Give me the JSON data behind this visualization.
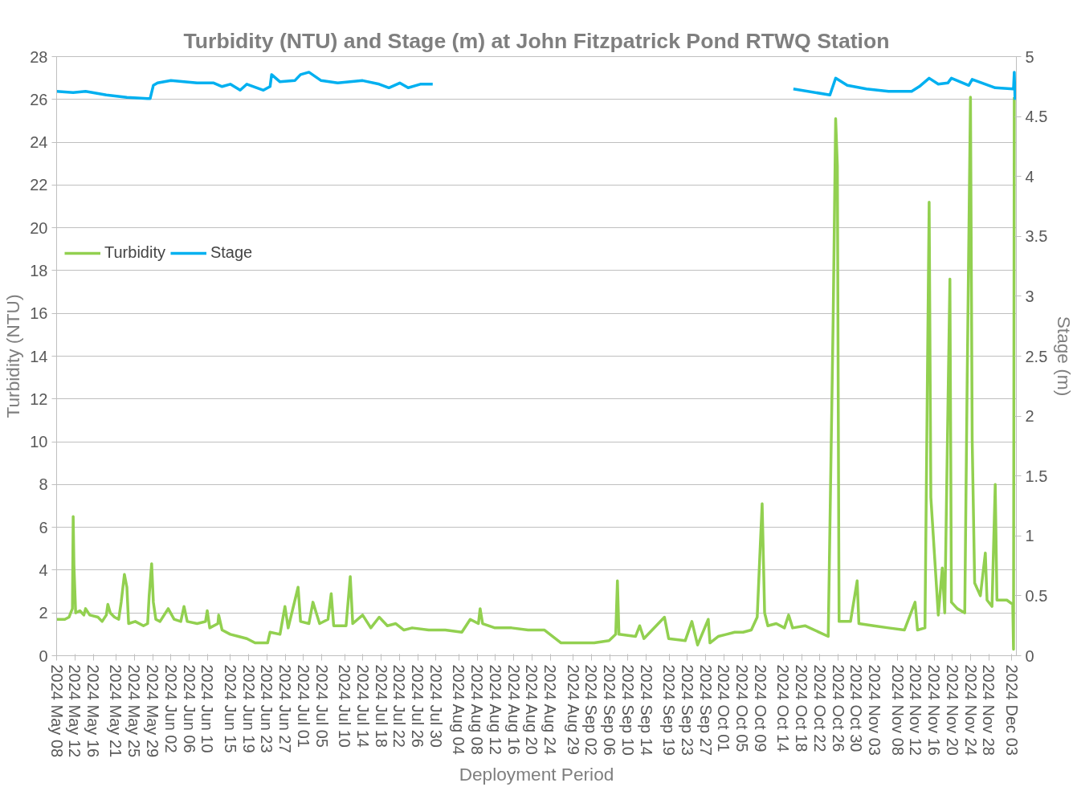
{
  "chart_data": {
    "type": "line",
    "title": "Turbidity (NTU) and Stage (m) at John Fitzpatrick Pond RTWQ Station",
    "xlabel": "Deployment Period",
    "ylabel": "Turbidity (NTU)",
    "y2label": "Stage (m)",
    "xlim": [
      "2024-05-08",
      "2024-12-04"
    ],
    "xticks": [
      {
        "value": "2024-05-08",
        "label": "2024 May 08"
      },
      {
        "value": "2024-05-12",
        "label": "2024 May 12"
      },
      {
        "value": "2024-05-16",
        "label": "2024 May 16"
      },
      {
        "value": "2024-05-21",
        "label": "2024 May 21"
      },
      {
        "value": "2024-05-25",
        "label": "2024 May 25"
      },
      {
        "value": "2024-05-29",
        "label": "2024 May 29"
      },
      {
        "value": "2024-06-02",
        "label": "2024 Jun 02"
      },
      {
        "value": "2024-06-06",
        "label": "2024 Jun 06"
      },
      {
        "value": "2024-06-10",
        "label": "2024 Jun 10"
      },
      {
        "value": "2024-06-15",
        "label": "2024 Jun 15"
      },
      {
        "value": "2024-06-19",
        "label": "2024 Jun 19"
      },
      {
        "value": "2024-06-23",
        "label": "2024 Jun 23"
      },
      {
        "value": "2024-06-27",
        "label": "2024 Jun 27"
      },
      {
        "value": "2024-07-01",
        "label": "2024 Jul 01"
      },
      {
        "value": "2024-07-05",
        "label": "2024 Jul 05"
      },
      {
        "value": "2024-07-10",
        "label": "2024 Jul 10"
      },
      {
        "value": "2024-07-14",
        "label": "2024 Jul 14"
      },
      {
        "value": "2024-07-18",
        "label": "2024 Jul 18"
      },
      {
        "value": "2024-07-22",
        "label": "2024 Jul 22"
      },
      {
        "value": "2024-07-26",
        "label": "2024 Jul 26"
      },
      {
        "value": "2024-07-30",
        "label": "2024 Jul 30"
      },
      {
        "value": "2024-08-04",
        "label": "2024 Aug 04"
      },
      {
        "value": "2024-08-08",
        "label": "2024 Aug 08"
      },
      {
        "value": "2024-08-12",
        "label": "2024 Aug 12"
      },
      {
        "value": "2024-08-16",
        "label": "2024 Aug 16"
      },
      {
        "value": "2024-08-20",
        "label": "2024 Aug 20"
      },
      {
        "value": "2024-08-24",
        "label": "2024 Aug 24"
      },
      {
        "value": "2024-08-29",
        "label": "2024 Aug 29"
      },
      {
        "value": "2024-09-02",
        "label": "2024 Sep 02"
      },
      {
        "value": "2024-09-06",
        "label": "2024 Sep 06"
      },
      {
        "value": "2024-09-10",
        "label": "2024 Sep 10"
      },
      {
        "value": "2024-09-14",
        "label": "2024 Sep 14"
      },
      {
        "value": "2024-09-19",
        "label": "2024 Sep 19"
      },
      {
        "value": "2024-09-23",
        "label": "2024 Sep 23"
      },
      {
        "value": "2024-09-27",
        "label": "2024 Sep 27"
      },
      {
        "value": "2024-10-01",
        "label": "2024 Oct 01"
      },
      {
        "value": "2024-10-05",
        "label": "2024 Oct 05"
      },
      {
        "value": "2024-10-09",
        "label": "2024 Oct 09"
      },
      {
        "value": "2024-10-14",
        "label": "2024 Oct 14"
      },
      {
        "value": "2024-10-18",
        "label": "2024 Oct 18"
      },
      {
        "value": "2024-10-22",
        "label": "2024 Oct 22"
      },
      {
        "value": "2024-10-26",
        "label": "2024 Oct 26"
      },
      {
        "value": "2024-10-30",
        "label": "2024 Oct 30"
      },
      {
        "value": "2024-11-03",
        "label": "2024 Nov 03"
      },
      {
        "value": "2024-11-08",
        "label": "2024 Nov 08"
      },
      {
        "value": "2024-11-12",
        "label": "2024 Nov 12"
      },
      {
        "value": "2024-11-16",
        "label": "2024 Nov 16"
      },
      {
        "value": "2024-11-20",
        "label": "2024 Nov 20"
      },
      {
        "value": "2024-11-24",
        "label": "2024 Nov 24"
      },
      {
        "value": "2024-11-28",
        "label": "2024 Nov 28"
      },
      {
        "value": "2024-12-03",
        "label": "2024 Dec 03"
      }
    ],
    "ylim": [
      0,
      28
    ],
    "yticks": [
      0,
      2,
      4,
      6,
      8,
      10,
      12,
      14,
      16,
      18,
      20,
      22,
      24,
      26,
      28
    ],
    "y2lim": [
      0,
      5
    ],
    "y2ticks": [
      0,
      0.5,
      1,
      1.5,
      2,
      2.5,
      3,
      3.5,
      4,
      4.5,
      5
    ],
    "grid": "y",
    "legend": "top left",
    "line_style": "solid",
    "marker": "none",
    "series": [
      {
        "name": "Turbidity",
        "color": "#92d050",
        "x": [
          "2024-05-08",
          "2024-05-09T19:00",
          "2024-05-10T17:00",
          "2024-05-11T02:00",
          "2024-05-11T11:00",
          "2024-05-11T15:00",
          "2024-05-11T19:00",
          "2024-05-12T04:00",
          "2024-05-13T02:00",
          "2024-05-13T23:00",
          "2024-05-14T08:00",
          "2024-05-15T06:00",
          "2024-05-17T01:00",
          "2024-05-17T23:00",
          "2024-05-18T21:00",
          "2024-05-19T05:00",
          "2024-05-19T18:00",
          "2024-05-20T16:00",
          "2024-05-21T14:00",
          "2024-05-22T03:00",
          "2024-05-22T20:00",
          "2024-05-23T09:00",
          "2024-05-23T18:00",
          "2024-05-25T05:00",
          "2024-05-27",
          "2024-05-27T22:00",
          "2024-05-28T06:00",
          "2024-05-28T19:00",
          "2024-05-29T04:00",
          "2024-05-29T17:00",
          "2024-05-30T15:00",
          "2024-06-01T10:00",
          "2024-06-02T17:00",
          "2024-06-04T04:00",
          "2024-06-04T21:00",
          "2024-06-05T14:00",
          "2024-06-07T18:00",
          "2024-06-09T14:00",
          "2024-06-09T23:00",
          "2024-06-10T12:00",
          "2024-06-12T07:00",
          "2024-06-12T11:00",
          "2024-06-13T05:00",
          "2024-06-15",
          "2024-06-16T19:00",
          "2024-06-18T15:00",
          "2024-06-20T10:00",
          "2024-06-23T04:00",
          "2024-06-23T17:00",
          "2024-06-25T21:00",
          "2024-06-26T23:00",
          "2024-06-27T16:00",
          "2024-06-29T20:00",
          "2024-06-30T09:00",
          "2024-07-02T05:00",
          "2024-07-03T02:00",
          "2024-07-04T13:00",
          "2024-07-06T09:00",
          "2024-07-07T02:00",
          "2024-07-07T15:00",
          "2024-07-10T08:00",
          "2024-07-11T06:00",
          "2024-07-11T19:00",
          "2024-07-13T23:00",
          "2024-07-15T18:00",
          "2024-07-17T14:00",
          "2024-07-19T09:00",
          "2024-07-21T05:00",
          "2024-07-23",
          "2024-07-24T19:00",
          "2024-07-28T10:00",
          "2024-08-01T01:00",
          "2024-08-04T16:00",
          "2024-08-06T12:00",
          "2024-08-08T07:00",
          "2024-08-08T16:00",
          "2024-08-09T05:00",
          "2024-08-11T22:00",
          "2024-08-15T13:00",
          "2024-08-19T04:00",
          "2024-08-22T18:00",
          "2024-08-26T09:00",
          "2024-08-30",
          "2024-09-02T15:00",
          "2024-09-05T21:00",
          "2024-09-07T08:00",
          "2024-09-07T17:00",
          "2024-09-08T01:00",
          "2024-09-11T16:00",
          "2024-09-12T14:00",
          "2024-09-13T12:00",
          "2024-09-18",
          "2024-09-18T22:00",
          "2024-09-22T13:00",
          "2024-09-24",
          "2024-09-25T06:00",
          "2024-09-27T14:00",
          "2024-09-27T23:00",
          "2024-09-29T18:00",
          "2024-10-01T14:00",
          "2024-10-03T09:00",
          "2024-10-05T05:00",
          "2024-10-07",
          "2024-10-08T07:00",
          "2024-10-08T20:00",
          "2024-10-09T09:00",
          "2024-10-09T22:00",
          "2024-10-10T15:00",
          "2024-10-12T11:00",
          "2024-10-14T06:00",
          "2024-10-15T04:00",
          "2024-10-16T01:00",
          "2024-10-18T18:00",
          "2024-10-23T20:00",
          "2024-10-24T22:00",
          "2024-10-25T11:00",
          "2024-10-25T20:00",
          "2024-10-26T05:00",
          "2024-10-28T17:00",
          "2024-10-30T04:00",
          "2024-10-30T13:00",
          "2024-11-02T19:00",
          "2024-11-06T01:00",
          "2024-11-09T12:00",
          "2024-11-11T20:00",
          "2024-11-12T09:00",
          "2024-11-14",
          "2024-11-14T22:00",
          "2024-11-15T07:00",
          "2024-11-16",
          "2024-11-16T22:00",
          "2024-11-17T19:00",
          "2024-11-18T08:00",
          "2024-11-19T11:00",
          "2024-11-19T19:00",
          "2024-11-21T02:00",
          "2024-11-22T17:00",
          "2024-11-23T06:00",
          "2024-11-23T23:00",
          "2024-11-24T08:00",
          "2024-11-24T21:00",
          "2024-11-26T03:00",
          "2024-11-27T05:00",
          "2024-11-27T14:00",
          "2024-11-28T16:00",
          "2024-11-29T09:00",
          "2024-11-29T18:00",
          "2024-12-01T22:00",
          "2024-12-03T05:00",
          "2024-12-03T09:00",
          "2024-12-03T13:00"
        ],
        "values": [
          1.7,
          1.7,
          1.8,
          2.0,
          2.2,
          6.5,
          4.2,
          2.0,
          2.1,
          1.9,
          2.2,
          1.9,
          1.8,
          1.6,
          1.9,
          2.4,
          2.0,
          1.8,
          1.7,
          2.5,
          3.8,
          3.2,
          1.5,
          1.6,
          1.4,
          1.5,
          2.8,
          4.3,
          2.5,
          1.7,
          1.6,
          2.2,
          1.7,
          1.6,
          2.3,
          1.6,
          1.5,
          1.6,
          2.1,
          1.3,
          1.5,
          1.9,
          1.2,
          1.0,
          0.9,
          0.8,
          0.6,
          0.6,
          1.1,
          1.0,
          2.3,
          1.3,
          3.2,
          1.6,
          1.5,
          2.5,
          1.5,
          1.7,
          2.9,
          1.4,
          1.4,
          3.7,
          1.5,
          1.9,
          1.3,
          1.8,
          1.4,
          1.5,
          1.2,
          1.3,
          1.2,
          1.2,
          1.1,
          1.7,
          1.5,
          2.2,
          1.5,
          1.3,
          1.3,
          1.2,
          1.2,
          0.6,
          0.6,
          0.6,
          0.7,
          1.0,
          3.5,
          1.0,
          0.9,
          1.4,
          0.8,
          1.8,
          0.8,
          0.7,
          1.6,
          0.5,
          1.7,
          0.6,
          0.9,
          1.0,
          1.1,
          1.1,
          1.2,
          1.8,
          4.5,
          7.1,
          2.0,
          1.4,
          1.5,
          1.3,
          1.9,
          1.3,
          1.4,
          0.9,
          15.8,
          25.1,
          22.9,
          1.6,
          1.6,
          3.5,
          1.5,
          1.4,
          1.3,
          1.2,
          2.5,
          1.2,
          1.3,
          21.2,
          7.4,
          5.0,
          1.9,
          4.1,
          2.0,
          17.6,
          2.5,
          2.2,
          2.0,
          13.1,
          26.1,
          10.1,
          3.4,
          2.8,
          4.8,
          2.6,
          2.3,
          8.0,
          2.6,
          2.6,
          2.4,
          0.3,
          26.1
        ]
      },
      {
        "name": "Stage",
        "color": "#00b0f0",
        "axis": "y2",
        "x": [
          "2024-05-08",
          "2024-05-11T15:00",
          "2024-05-14T08:00",
          "2024-05-18T21:00",
          "2024-05-23T09:00",
          "2024-05-27T22:00",
          "2024-05-28T11:00",
          "2024-05-29T04:00",
          "2024-05-30T02:00",
          "2024-06-02",
          "2024-06-07T18:00",
          "2024-06-11T09:00",
          "2024-06-13T05:00",
          "2024-06-15",
          "2024-06-17T04:00",
          "2024-06-18T15:00",
          "2024-06-22T06:00",
          "2024-06-23T17:00",
          "2024-06-24T01:00",
          "2024-06-25T21:00",
          "2024-06-29T03:00",
          "2024-06-30T09:00",
          "2024-07-02T05:00",
          "2024-07-04T21:00",
          "2024-07-08T12:00",
          "2024-07-13T23:00",
          "2024-07-17T14:00",
          "2024-07-19T17:00",
          "2024-07-22T02:00",
          "2024-07-23T22:00",
          "2024-07-26T14:00",
          "2024-07-29T07:00",
          "2024-08-15",
          "2024-10-16T05:00",
          "2024-10-24T05:00",
          "2024-10-25T11:00",
          "2024-10-28",
          "2024-11-01T05:00",
          "2024-11-06T01:00",
          "2024-11-11T02:00",
          "2024-11-12T18:00",
          "2024-11-14T22:00",
          "2024-11-16T22:00",
          "2024-11-19",
          "2024-11-19T19:00",
          "2024-11-23T14:00",
          "2024-11-24T08:00",
          "2024-11-29T09:00",
          "2024-12-03T09:00",
          "2024-12-03T13:00",
          "2024-12-03T17:00"
        ],
        "values": [
          4.71,
          4.7,
          4.71,
          4.68,
          4.66,
          4.65,
          4.65,
          4.76,
          4.78,
          4.8,
          4.78,
          4.78,
          4.75,
          4.77,
          4.72,
          4.77,
          4.72,
          4.75,
          4.85,
          4.79,
          4.8,
          4.85,
          4.87,
          4.8,
          4.78,
          4.8,
          4.77,
          4.74,
          4.78,
          4.74,
          4.77,
          4.77,
          null,
          4.73,
          4.68,
          4.82,
          4.76,
          4.73,
          4.71,
          4.71,
          4.75,
          4.82,
          4.77,
          4.78,
          4.82,
          4.76,
          4.81,
          4.74,
          4.73,
          4.87,
          4.64
        ]
      }
    ]
  }
}
